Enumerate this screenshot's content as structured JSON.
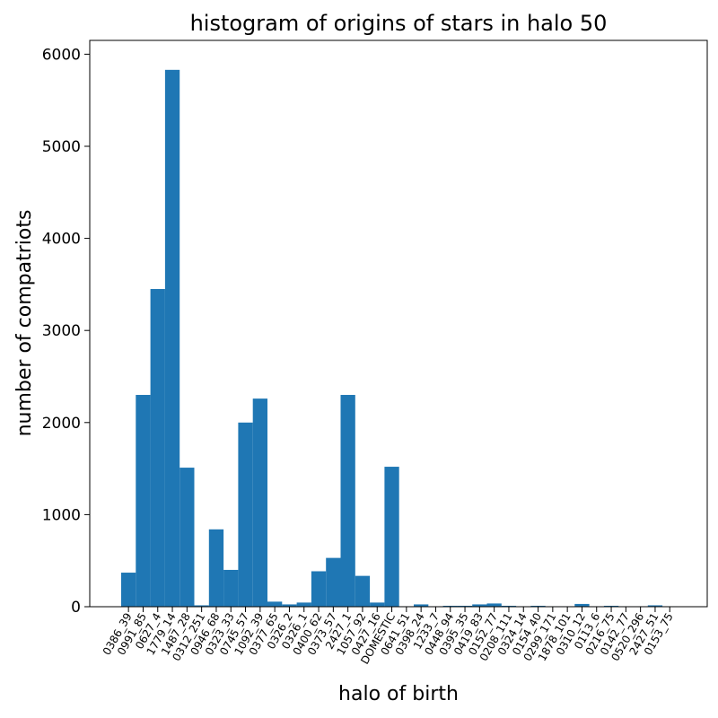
{
  "chart_data": {
    "type": "bar",
    "title": "histogram of origins of stars in halo 50",
    "xlabel": "halo of birth",
    "ylabel": "number of compatriots",
    "ylim": [
      0,
      6150
    ],
    "yticks": [
      0,
      1000,
      2000,
      3000,
      4000,
      5000,
      6000
    ],
    "grid": false,
    "bar_color": "#1f77b4",
    "categories": [
      "0386_39",
      "0991_85",
      "0627_4",
      "1779_14",
      "1487_28",
      "0312_251",
      "0946_68",
      "0323_33",
      "0745_57",
      "1092_39",
      "0377_65",
      "0326_2",
      "0326_1",
      "0400_62",
      "0373_57",
      "2427_1",
      "1057_92",
      "0427_16",
      "DOMESTIC",
      "0641_51",
      "0398_24",
      "1233_7",
      "0448_94",
      "0395_35",
      "0419_83",
      "0152_77",
      "0208_111",
      "0324_14",
      "0154_40",
      "0299_171",
      "1878_101",
      "0310_12",
      "0113_6",
      "0216_75",
      "0142_77",
      "0520_296",
      "2427_51",
      "0153_75"
    ],
    "values": [
      370,
      2300,
      3450,
      5830,
      1510,
      15,
      840,
      400,
      2000,
      2260,
      55,
      25,
      45,
      385,
      530,
      2300,
      335,
      45,
      1520,
      5,
      25,
      5,
      10,
      10,
      25,
      35,
      10,
      5,
      10,
      5,
      5,
      30,
      5,
      10,
      5,
      5,
      15,
      5
    ]
  }
}
